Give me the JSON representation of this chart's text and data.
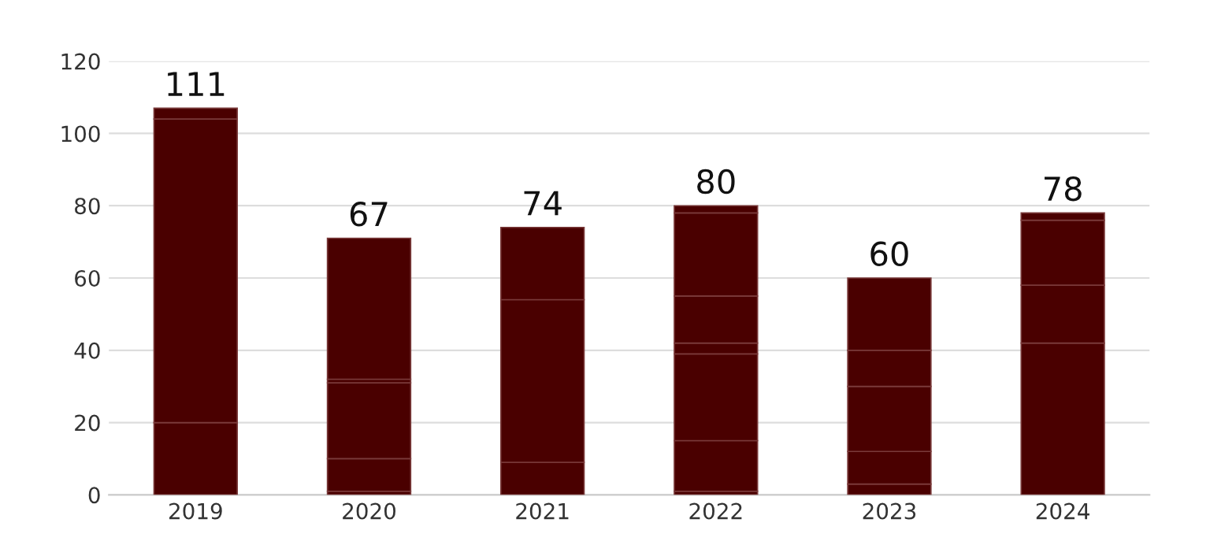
{
  "chart_data": {
    "type": "bar",
    "stacked": true,
    "categories": [
      "2019",
      "2020",
      "2021",
      "2022",
      "2023",
      "2024"
    ],
    "series": [
      {
        "color": "#4a0000",
        "values": [
          20,
          1,
          9,
          1,
          3,
          42
        ]
      },
      {
        "color": "#4a0000",
        "values": [
          84,
          9,
          45,
          14,
          9,
          16
        ]
      },
      {
        "color": "#4a0000",
        "values": [
          3,
          21,
          20,
          24,
          18,
          18
        ]
      },
      {
        "color": "#4a0000",
        "values": [
          null,
          1,
          null,
          3,
          10,
          2
        ]
      },
      {
        "color": "#4a0000",
        "values": [
          null,
          39,
          null,
          13,
          20,
          null
        ]
      },
      {
        "color": "#4a0000",
        "values": [
          null,
          null,
          null,
          23,
          null,
          null
        ]
      },
      {
        "color": "#4a0000",
        "values": [
          null,
          null,
          null,
          2,
          null,
          null
        ]
      }
    ],
    "totals": [
      "111",
      "67",
      "74",
      "80",
      "60",
      "78"
    ],
    "ylim": [
      0,
      120
    ],
    "yticks": [
      0,
      20,
      40,
      60,
      80,
      100,
      120
    ],
    "grid": "y"
  }
}
